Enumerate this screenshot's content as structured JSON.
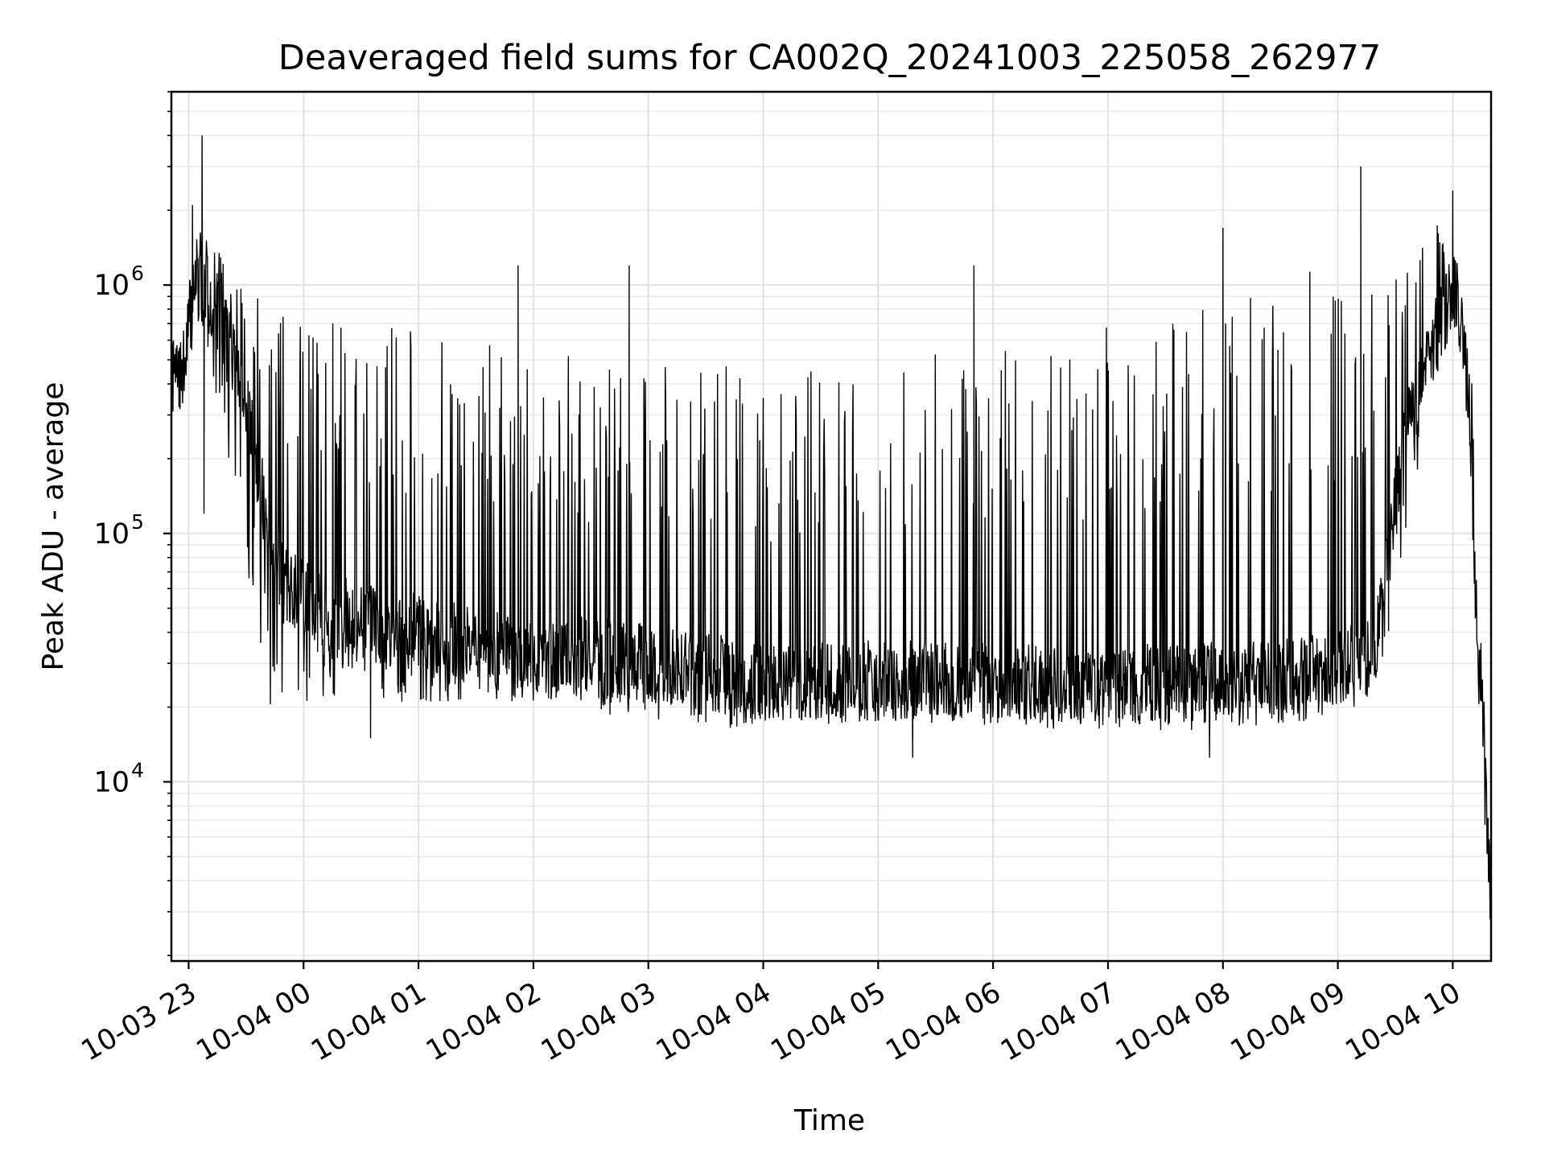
{
  "chart_data": {
    "type": "line",
    "title": "Deaveraged field sums for CA002Q_20241003_225058_262977",
    "xlabel": "Time",
    "ylabel": "Peak ADU - average",
    "x_ticks": [
      "10-03 23",
      "10-04 00",
      "10-04 01",
      "10-04 02",
      "10-04 03",
      "10-04 04",
      "10-04 05",
      "10-04 06",
      "10-04 07",
      "10-04 08",
      "10-04 09",
      "10-04 10"
    ],
    "xlim": [
      "2024-10-03 22:51",
      "2024-10-04 10:20"
    ],
    "ylim": [
      1900,
      6000000
    ],
    "yscale": "log",
    "y_ticks": [
      {
        "value": 10000,
        "base": "10",
        "exp": "4"
      },
      {
        "value": 100000,
        "base": "10",
        "exp": "5"
      },
      {
        "value": 1000000,
        "base": "10",
        "exp": "6"
      }
    ],
    "grid": true,
    "series": [
      {
        "color": "#000000",
        "x": [
          "2024-10-03 22:51",
          "2024-10-03 22:57",
          "2024-10-03 23:03",
          "2024-10-03 23:10",
          "2024-10-03 23:20",
          "2024-10-03 23:30",
          "2024-10-03 23:40",
          "2024-10-03 23:50",
          "2024-10-04 00:10",
          "2024-10-04 00:30",
          "2024-10-04 01:00",
          "2024-10-04 01:30",
          "2024-10-04 02:00",
          "2024-10-04 02:30",
          "2024-10-04 03:00",
          "2024-10-04 03:30",
          "2024-10-04 04:00",
          "2024-10-04 04:30",
          "2024-10-04 05:00",
          "2024-10-04 05:30",
          "2024-10-04 06:00",
          "2024-10-04 06:30",
          "2024-10-04 07:00",
          "2024-10-04 07:30",
          "2024-10-04 08:00",
          "2024-10-04 08:30",
          "2024-10-04 09:00",
          "2024-10-04 09:20",
          "2024-10-04 09:35",
          "2024-10-04 09:50",
          "2024-10-04 10:00",
          "2024-10-04 10:05",
          "2024-10-04 10:10",
          "2024-10-04 10:13",
          "2024-10-04 10:15",
          "2024-10-04 10:17",
          "2024-10-04 10:20"
        ],
        "y_base": [
          430000,
          430000,
          1100000,
          900000,
          650000,
          350000,
          120000,
          60000,
          50000,
          45000,
          40000,
          35000,
          33000,
          32000,
          30000,
          28000,
          25000,
          25500,
          26000,
          25500,
          25000,
          25000,
          24500,
          25000,
          25500,
          26000,
          28000,
          35000,
          250000,
          600000,
          950000,
          700000,
          200000,
          30000,
          25000,
          8000,
          3000
        ],
        "spike_top": [
          600000,
          600000,
          1900000,
          1600000,
          1200000,
          1000000,
          900000,
          800000,
          750000,
          700000,
          650000,
          600000,
          550000,
          500000,
          500000,
          500000,
          450000,
          450000,
          500000,
          550000,
          600000,
          650000,
          700000,
          750000,
          900000,
          1000000,
          1300000,
          1500000,
          1700000,
          1800000,
          1500000,
          1000000,
          400000,
          50000,
          40000,
          15000,
          4000
        ],
        "trough": [
          400000,
          380000,
          600000,
          450000,
          220000,
          60000,
          20000,
          20000,
          21000,
          21000,
          21000,
          21000,
          20000,
          19000,
          18000,
          16000,
          17000,
          17000,
          17000,
          16500,
          16500,
          16000,
          16000,
          16000,
          16000,
          17000,
          18000,
          22000,
          90000,
          350000,
          700000,
          400000,
          120000,
          20000,
          20000,
          5000,
          2800
        ],
        "notable_peaks": [
          {
            "x": "2024-10-03 23:07",
            "y": 4000000
          },
          {
            "x": "2024-10-03 23:02",
            "y": 2100000
          },
          {
            "x": "2024-10-04 09:12",
            "y": 3000000
          },
          {
            "x": "2024-10-04 10:00",
            "y": 2400000
          },
          {
            "x": "2024-10-04 01:52",
            "y": 1200000
          },
          {
            "x": "2024-10-04 02:50",
            "y": 1200000
          },
          {
            "x": "2024-10-04 05:50",
            "y": 1200000
          },
          {
            "x": "2024-10-04 08:00",
            "y": 1700000
          }
        ],
        "notable_dips": [
          {
            "x": "2024-10-03 23:08",
            "y": 120000
          },
          {
            "x": "2024-10-04 00:35",
            "y": 15000
          },
          {
            "x": "2024-10-04 05:18",
            "y": 12500
          },
          {
            "x": "2024-10-04 07:53",
            "y": 12500
          }
        ]
      }
    ]
  }
}
